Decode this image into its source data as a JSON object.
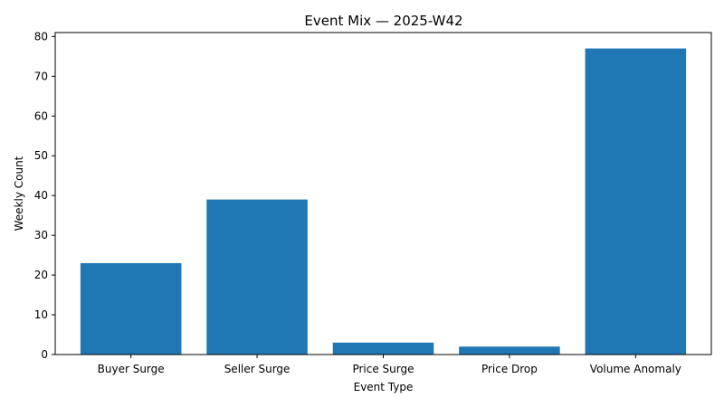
{
  "chart_data": {
    "type": "bar",
    "title": "Event Mix — 2025-W42",
    "xlabel": "Event Type",
    "ylabel": "Weekly Count",
    "categories": [
      "Buyer Surge",
      "Seller Surge",
      "Price Surge",
      "Price Drop",
      "Volume Anomaly"
    ],
    "values": [
      23,
      39,
      3,
      2,
      77
    ],
    "ylim": [
      0,
      81
    ],
    "yticks": [
      0,
      10,
      20,
      30,
      40,
      50,
      60,
      70,
      80
    ],
    "bar_color": "#1f77b4",
    "grid": false,
    "legend": "none"
  }
}
